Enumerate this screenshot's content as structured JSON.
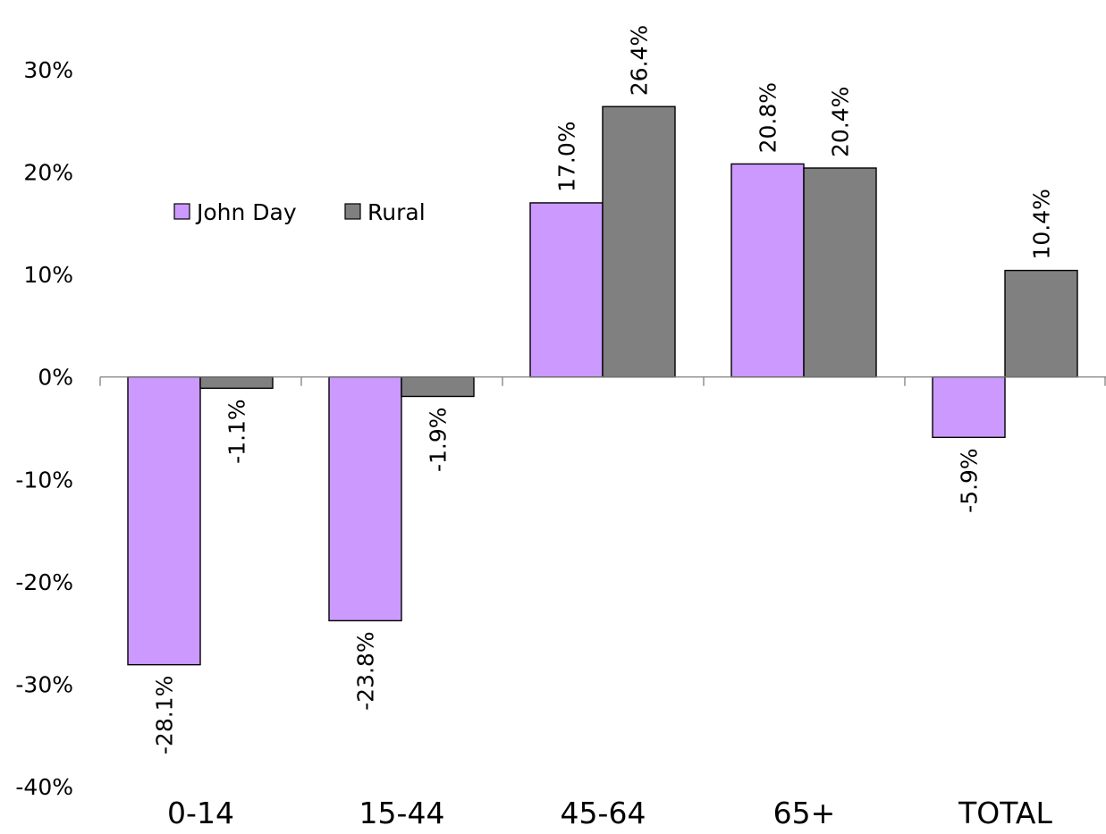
{
  "chart_data": {
    "type": "bar",
    "title": "",
    "xlabel": "",
    "ylabel": "",
    "categories": [
      "0-14",
      "15-44",
      "45-64",
      "65+",
      "TOTAL"
    ],
    "series": [
      {
        "name": "John Day",
        "color": "#cc99ff",
        "values": [
          -28.1,
          -23.8,
          17.0,
          20.8,
          -5.9
        ],
        "labels": [
          "-28.1%",
          "-23.8%",
          "17.0%",
          "20.8%",
          "-5.9%"
        ]
      },
      {
        "name": "Rural",
        "color": "#808080",
        "values": [
          -1.1,
          -1.9,
          26.4,
          20.4,
          10.4
        ],
        "labels": [
          "-1.1%",
          "-1.9%",
          "26.4%",
          "20.4%",
          "10.4%"
        ]
      }
    ],
    "ylim": [
      -40,
      30
    ],
    "yticks": [
      30,
      20,
      10,
      0,
      -10,
      -20,
      -30,
      -40
    ],
    "ytick_labels": [
      "30%",
      "20%",
      "10%",
      "0%",
      "-10%",
      "-20%",
      "-30%",
      "-40%"
    ],
    "legend_position": "top-left",
    "grid": false
  }
}
